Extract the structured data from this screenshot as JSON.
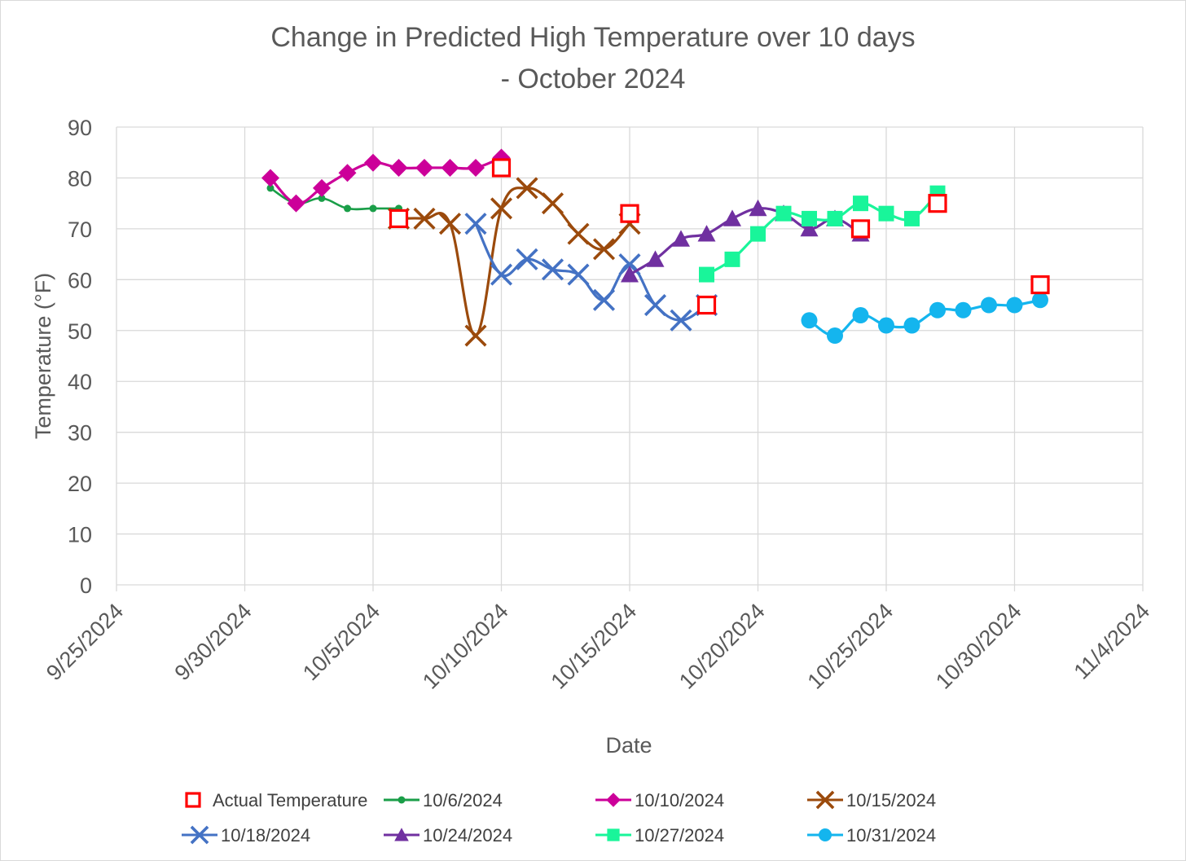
{
  "chart_data": {
    "type": "line",
    "title": [
      "Change in Predicted High Temperature over 10 days",
      "- October 2024"
    ],
    "xlabel": "Date",
    "ylabel": "Temperature (°F)",
    "ylim": [
      0,
      90
    ],
    "yticks": [
      0,
      10,
      20,
      30,
      40,
      50,
      60,
      70,
      80,
      90
    ],
    "xlim": [
      "9/25/2024",
      "11/4/2024"
    ],
    "xtick_labels": [
      "9/25/2024",
      "9/30/2024",
      "10/5/2024",
      "10/10/2024",
      "10/15/2024",
      "10/20/2024",
      "10/25/2024",
      "10/30/2024",
      "11/4/2024"
    ],
    "grid": true,
    "legend_position": "bottom",
    "series": [
      {
        "name": "Actual Temperature",
        "marker": "open-square",
        "color": "#ff0000",
        "line": false,
        "points": [
          [
            "10/6/2024",
            72
          ],
          [
            "10/10/2024",
            82
          ],
          [
            "10/15/2024",
            73
          ],
          [
            "10/18/2024",
            55
          ],
          [
            "10/24/2024",
            70
          ],
          [
            "10/27/2024",
            75
          ],
          [
            "10/31/2024",
            59
          ]
        ]
      },
      {
        "name": "10/6/2024",
        "marker": "small-circle",
        "color": "#1a9e48",
        "line": true,
        "points": [
          [
            "10/1/2024",
            78
          ],
          [
            "10/2/2024",
            75
          ],
          [
            "10/3/2024",
            76
          ],
          [
            "10/4/2024",
            74
          ],
          [
            "10/5/2024",
            74
          ],
          [
            "10/6/2024",
            74
          ]
        ]
      },
      {
        "name": "10/10/2024",
        "marker": "diamond",
        "color": "#cc0099",
        "line": true,
        "points": [
          [
            "10/1/2024",
            80
          ],
          [
            "10/2/2024",
            75
          ],
          [
            "10/3/2024",
            78
          ],
          [
            "10/4/2024",
            81
          ],
          [
            "10/5/2024",
            83
          ],
          [
            "10/6/2024",
            82
          ],
          [
            "10/7/2024",
            82
          ],
          [
            "10/8/2024",
            82
          ],
          [
            "10/9/2024",
            82
          ],
          [
            "10/10/2024",
            84
          ]
        ]
      },
      {
        "name": "10/15/2024",
        "marker": "x",
        "color": "#9b4a0c",
        "line": true,
        "points": [
          [
            "10/6/2024",
            72
          ],
          [
            "10/7/2024",
            72
          ],
          [
            "10/8/2024",
            71
          ],
          [
            "10/9/2024",
            49
          ],
          [
            "10/10/2024",
            74
          ],
          [
            "10/11/2024",
            78
          ],
          [
            "10/12/2024",
            75
          ],
          [
            "10/13/2024",
            69
          ],
          [
            "10/14/2024",
            66
          ],
          [
            "10/15/2024",
            71
          ]
        ]
      },
      {
        "name": "10/18/2024",
        "marker": "x",
        "color": "#4472c4",
        "line": true,
        "points": [
          [
            "10/9/2024",
            71
          ],
          [
            "10/10/2024",
            61
          ],
          [
            "10/11/2024",
            64
          ],
          [
            "10/12/2024",
            62
          ],
          [
            "10/13/2024",
            61
          ],
          [
            "10/14/2024",
            56
          ],
          [
            "10/15/2024",
            63
          ],
          [
            "10/16/2024",
            55
          ],
          [
            "10/17/2024",
            52
          ],
          [
            "10/18/2024",
            55
          ]
        ]
      },
      {
        "name": "10/24/2024",
        "marker": "triangle",
        "color": "#7030a0",
        "line": true,
        "points": [
          [
            "10/15/2024",
            61
          ],
          [
            "10/16/2024",
            64
          ],
          [
            "10/17/2024",
            68
          ],
          [
            "10/18/2024",
            69
          ],
          [
            "10/19/2024",
            72
          ],
          [
            "10/20/2024",
            74
          ],
          [
            "10/21/2024",
            73
          ],
          [
            "10/22/2024",
            70
          ],
          [
            "10/23/2024",
            72
          ],
          [
            "10/24/2024",
            69
          ]
        ]
      },
      {
        "name": "10/27/2024",
        "marker": "square",
        "color": "#19f59a",
        "line": true,
        "points": [
          [
            "10/18/2024",
            61
          ],
          [
            "10/19/2024",
            64
          ],
          [
            "10/20/2024",
            69
          ],
          [
            "10/21/2024",
            73
          ],
          [
            "10/22/2024",
            72
          ],
          [
            "10/23/2024",
            72
          ],
          [
            "10/24/2024",
            75
          ],
          [
            "10/25/2024",
            73
          ],
          [
            "10/26/2024",
            72
          ],
          [
            "10/27/2024",
            77
          ]
        ]
      },
      {
        "name": "10/31/2024",
        "marker": "circle",
        "color": "#14b5ee",
        "line": true,
        "points": [
          [
            "10/22/2024",
            52
          ],
          [
            "10/23/2024",
            49
          ],
          [
            "10/24/2024",
            53
          ],
          [
            "10/25/2024",
            51
          ],
          [
            "10/26/2024",
            51
          ],
          [
            "10/27/2024",
            54
          ],
          [
            "10/28/2024",
            54
          ],
          [
            "10/29/2024",
            55
          ],
          [
            "10/30/2024",
            55
          ],
          [
            "10/31/2024",
            56
          ]
        ]
      }
    ]
  }
}
